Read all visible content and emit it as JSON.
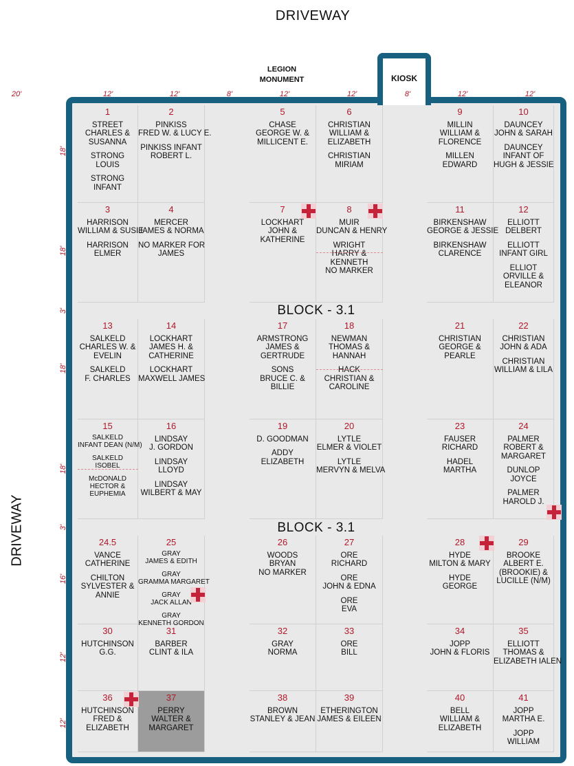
{
  "labels": {
    "driveway_top": "DRIVEWAY",
    "driveway_left": "DRIVEWAY",
    "legion_line1": "LEGION",
    "legion_line2": "MONUMENT",
    "kiosk": "KIOSK",
    "block_1": "BLOCK - 3.1",
    "block_2": "BLOCK - 3.1"
  },
  "colors": {
    "frame": "#17607f",
    "plot_number": "#b0182a",
    "reserved": "#9c9c9c"
  },
  "dimensions": {
    "top": [
      "20'",
      "12'",
      "12'",
      "8'",
      "12'",
      "12'",
      "8'",
      "12'",
      "12'"
    ],
    "left": [
      "18'",
      "18'",
      "3'",
      "18'",
      "18'",
      "3'",
      "16'",
      "12'",
      "12'"
    ]
  },
  "plots": [
    {
      "number": "1",
      "lines": [
        "STREET",
        "CHARLES &",
        "SUSANNA",
        "",
        "STRONG",
        "LOUIS",
        "",
        "STRONG",
        "INFANT"
      ]
    },
    {
      "number": "2",
      "lines": [
        "PINKISS",
        "FRED W. & LUCY E.",
        "",
        "PINKISS INFANT",
        "ROBERT L."
      ]
    },
    {
      "number": "5",
      "lines": [
        "CHASE",
        "GEORGE W. &",
        "MILLICENT E."
      ]
    },
    {
      "number": "6",
      "lines": [
        "CHRISTIAN",
        "WILLIAM &",
        "ELIZABETH",
        "",
        "CHRISTIAN",
        "MIRIAM"
      ]
    },
    {
      "number": "9",
      "lines": [
        "MILLIN",
        "WILLIAM &",
        "FLORENCE",
        "",
        "MILLEN",
        "EDWARD"
      ]
    },
    {
      "number": "10",
      "lines": [
        "DAUNCEY",
        "JOHN & SARAH",
        "",
        "DAUNCEY",
        "INFANT OF",
        "HUGH & JESSIE"
      ]
    },
    {
      "number": "3",
      "lines": [
        "HARRISON",
        "WILLIAM & SUSIE",
        "",
        "HARRISON",
        "ELMER"
      ]
    },
    {
      "number": "4",
      "lines": [
        "MERCER",
        "JAMES & NORMA",
        "",
        "NO MARKER FOR",
        "JAMES"
      ]
    },
    {
      "number": "7",
      "lines": [
        "LOCKHART",
        "JOHN &",
        "KATHERINE"
      ]
    },
    {
      "number": "8",
      "lines": [
        "MUIR",
        "DUNCAN & HENRY",
        "",
        "WRIGHT",
        "HARRY &",
        "KENNETH",
        "NO MARKER"
      ]
    },
    {
      "number": "11",
      "lines": [
        "BIRKENSHAW",
        "GEORGE & JESSIE",
        "",
        "BIRKENSHAW",
        "CLARENCE"
      ]
    },
    {
      "number": "12",
      "lines": [
        "ELLIOTT",
        "DELBERT",
        "",
        "ELLIOTT",
        "INFANT GIRL",
        "",
        "ELLIOT",
        "ORVILLE &",
        "ELEANOR"
      ]
    },
    {
      "number": "13",
      "lines": [
        "SALKELD",
        "CHARLES W. &",
        "EVELIN",
        "",
        "SALKELD",
        "F. CHARLES"
      ]
    },
    {
      "number": "14",
      "lines": [
        "LOCKHART",
        "JAMES H. &",
        "CATHERINE",
        "",
        "LOCKHART",
        "MAXWELL JAMES"
      ]
    },
    {
      "number": "17",
      "lines": [
        "ARMSTRONG",
        "JAMES &",
        "GERTRUDE",
        "",
        "SONS",
        "BRUCE C. &",
        "BILLIE"
      ]
    },
    {
      "number": "18",
      "lines": [
        "NEWMAN",
        "THOMAS &",
        "HANNAH",
        "",
        "HACK",
        "CHRISTIAN &",
        "CAROLINE"
      ]
    },
    {
      "number": "21",
      "lines": [
        "CHRISTIAN",
        "GEORGE &",
        "PEARLE"
      ]
    },
    {
      "number": "22",
      "lines": [
        "CHRISTIAN",
        "JOHN & ADA",
        "",
        "CHRISTIAN",
        "WILLIAM & LILA"
      ]
    },
    {
      "number": "15",
      "lines": [
        "SALKELD",
        "INFANT DEAN (N/M)",
        "",
        "SALKELD",
        "ISOBEL",
        "",
        "McDONALD",
        "HECTOR &",
        "EUPHEMIA"
      ]
    },
    {
      "number": "16",
      "lines": [
        "LINDSAY",
        "J. GORDON",
        "",
        "LINDSAY",
        "LLOYD",
        "",
        "LINDSAY",
        "WILBERT & MAY"
      ]
    },
    {
      "number": "19",
      "lines": [
        "D. GOODMAN",
        "",
        "ADDY",
        "ELIZABETH"
      ]
    },
    {
      "number": "20",
      "lines": [
        "LYTLE",
        "ELMER & VIOLET",
        "",
        "LYTLE",
        "MERVYN & MELVA"
      ]
    },
    {
      "number": "23",
      "lines": [
        "FAUSER",
        "RICHARD",
        "",
        "HADEL",
        "MARTHA"
      ]
    },
    {
      "number": "24",
      "lines": [
        "PALMER",
        "ROBERT &",
        "MARGARET",
        "",
        "DUNLOP",
        "JOYCE",
        "",
        "PALMER",
        "HAROLD J."
      ]
    },
    {
      "number": "24.5",
      "lines": [
        "VANCE",
        "CATHERINE",
        "",
        "CHILTON",
        "SYLVESTER &",
        "ANNIE"
      ]
    },
    {
      "number": "25",
      "lines": [
        "GRAY",
        "JAMES & EDITH",
        "",
        "GRAY",
        "GRAMMA MARGARET",
        "",
        "GRAY",
        "JACK ALLAN",
        "",
        "GRAY",
        "KENNETH GORDON"
      ]
    },
    {
      "number": "26",
      "lines": [
        "WOODS",
        "BRYAN",
        "NO MARKER"
      ]
    },
    {
      "number": "27",
      "lines": [
        "ORE",
        "RICHARD",
        "",
        "ORE",
        "JOHN & EDNA",
        "",
        "ORE",
        "EVA"
      ]
    },
    {
      "number": "28",
      "lines": [
        "HYDE",
        "MILTON & MARY",
        "",
        "HYDE",
        "GEORGE"
      ]
    },
    {
      "number": "29",
      "lines": [
        "BROOKE",
        "ALBERT E.",
        "(BROOKIE) &",
        "LUCILLE (N/M)"
      ]
    },
    {
      "number": "30",
      "lines": [
        "HUTCHINSON",
        "G.G."
      ]
    },
    {
      "number": "31",
      "lines": [
        "BARBER",
        "CLINT & ILA"
      ]
    },
    {
      "number": "32",
      "lines": [
        "GRAY",
        "NORMA"
      ]
    },
    {
      "number": "33",
      "lines": [
        "ORE",
        "BILL"
      ]
    },
    {
      "number": "34",
      "lines": [
        "JOPP",
        "JOHN & FLORIS"
      ]
    },
    {
      "number": "35",
      "lines": [
        "ELLIOTT",
        "THOMAS &",
        "ELIZABETH IALEN"
      ]
    },
    {
      "number": "36",
      "lines": [
        "HUTCHINSON",
        "FRED &",
        "ELIZABETH"
      ]
    },
    {
      "number": "37",
      "lines": [
        "PERRY",
        "WALTER &",
        "MARGARET"
      ]
    },
    {
      "number": "38",
      "lines": [
        "BROWN",
        "STANLEY & JEAN"
      ]
    },
    {
      "number": "39",
      "lines": [
        "ETHERINGTON",
        "JAMES & EILEEN"
      ]
    },
    {
      "number": "40",
      "lines": [
        "BELL",
        "WILLIAM &",
        "ELIZABETH"
      ]
    },
    {
      "number": "41",
      "lines": [
        "JOPP",
        "MARTHA E.",
        "",
        "JOPP",
        "WILLIAM"
      ]
    }
  ],
  "markers": [
    {
      "plot": "7",
      "icon": "grave-marker-icon"
    },
    {
      "plot": "8",
      "icon": "grave-marker-icon"
    },
    {
      "plot": "24",
      "icon": "grave-marker-icon"
    },
    {
      "plot": "25",
      "icon": "grave-marker-icon"
    },
    {
      "plot": "28",
      "icon": "grave-marker-icon"
    },
    {
      "plot": "36",
      "icon": "grave-marker-icon"
    }
  ],
  "reserved_plots": [
    "37"
  ]
}
